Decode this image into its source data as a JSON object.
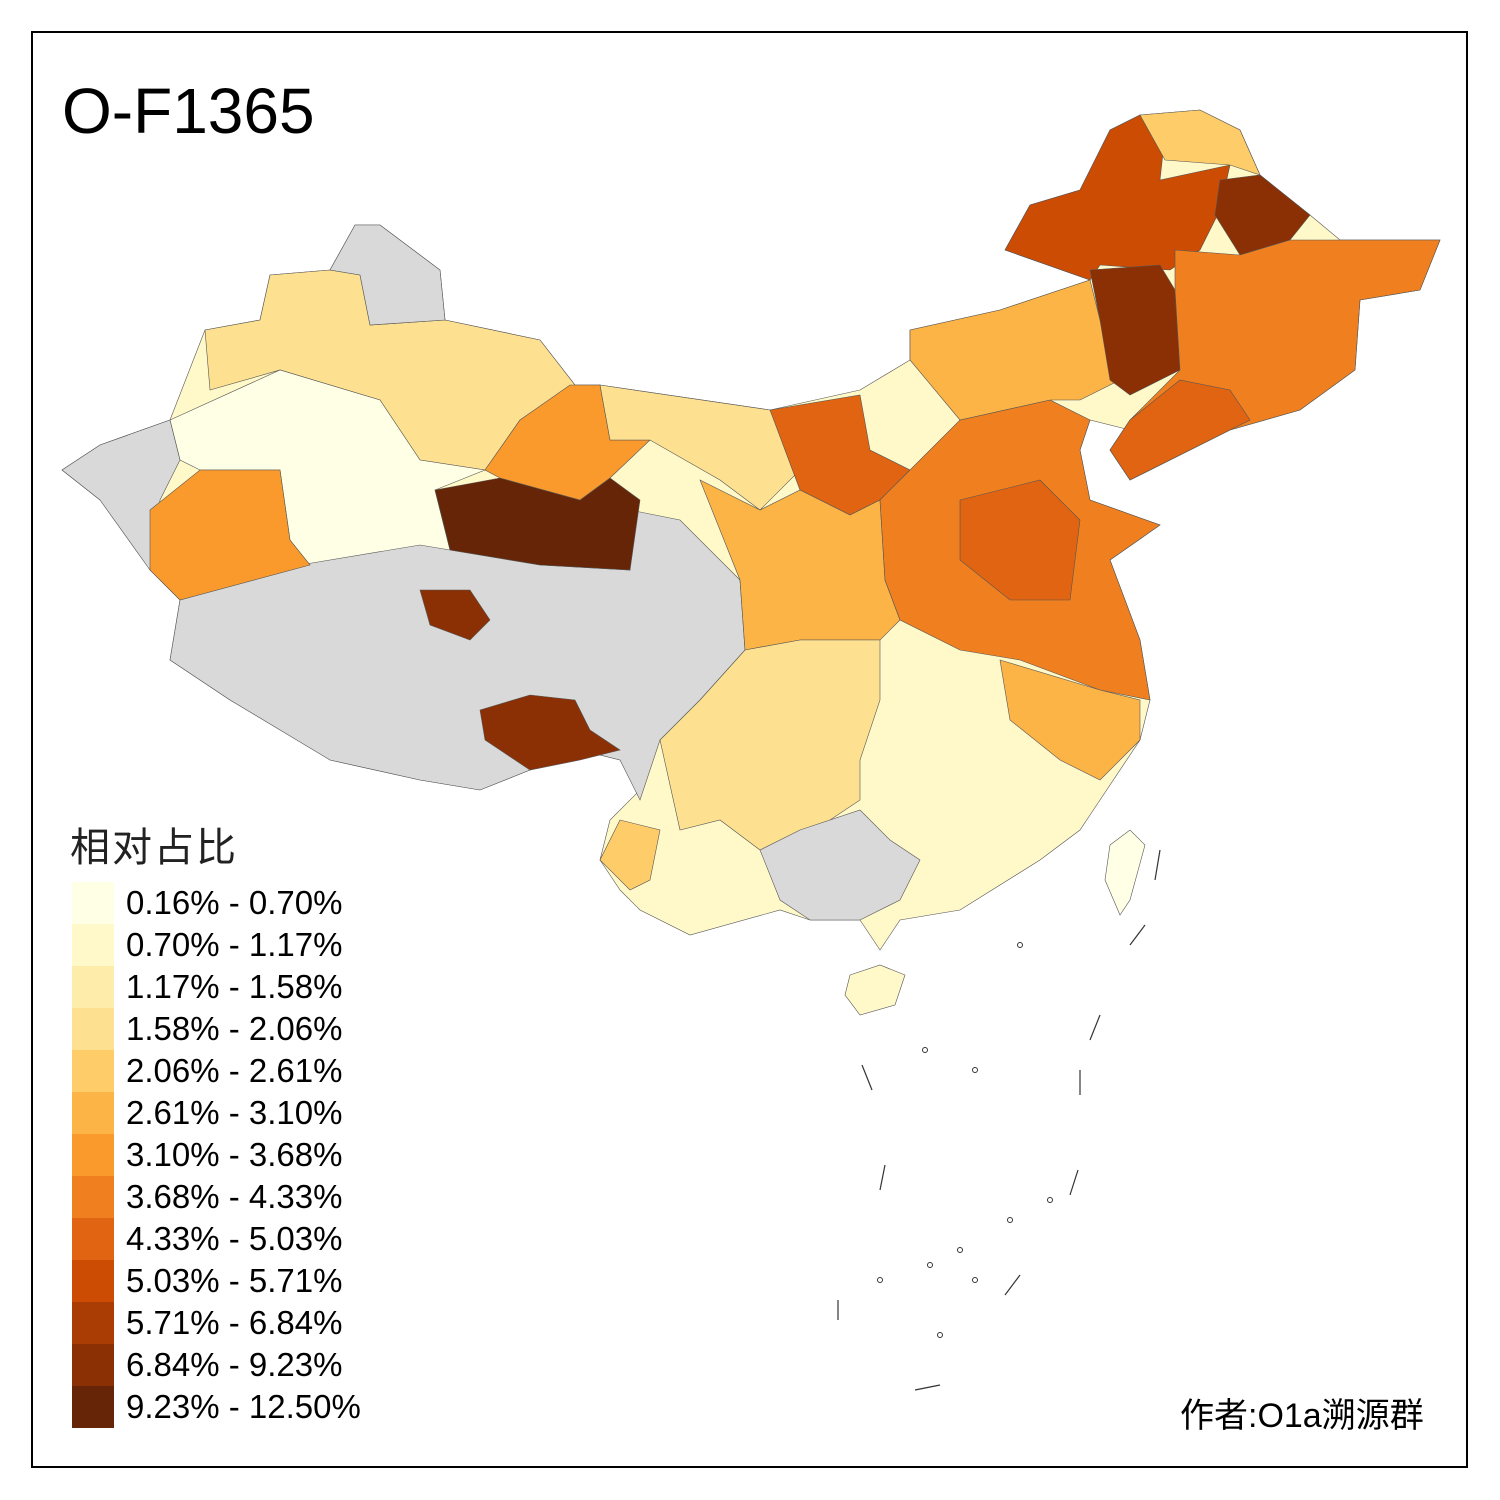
{
  "title": "O-F1365",
  "legend": {
    "title": "相对占比",
    "no_data_color": "#D9D9D9",
    "items": [
      {
        "label": "0.16% - 0.70%",
        "color": "#FFFFE5"
      },
      {
        "label": "0.70% - 1.17%",
        "color": "#FFF8C8"
      },
      {
        "label": "1.17% - 1.58%",
        "color": "#FEEDAA"
      },
      {
        "label": "1.58% - 2.06%",
        "color": "#FEE190"
      },
      {
        "label": "2.06% - 2.61%",
        "color": "#FECD6A"
      },
      {
        "label": "2.61% - 3.10%",
        "color": "#FDB447"
      },
      {
        "label": "3.10% - 3.68%",
        "color": "#FB9A2C"
      },
      {
        "label": "3.68% - 4.33%",
        "color": "#F0801F"
      },
      {
        "label": "4.33% - 5.03%",
        "color": "#E06412"
      },
      {
        "label": "5.03% - 5.71%",
        "color": "#CC4C04"
      },
      {
        "label": "5.71% - 6.84%",
        "color": "#AA3D04"
      },
      {
        "label": "6.84% - 9.23%",
        "color": "#8A3004"
      },
      {
        "label": "9.23% - 12.50%",
        "color": "#662506"
      }
    ]
  },
  "credit": "作者:O1a溯源群"
}
